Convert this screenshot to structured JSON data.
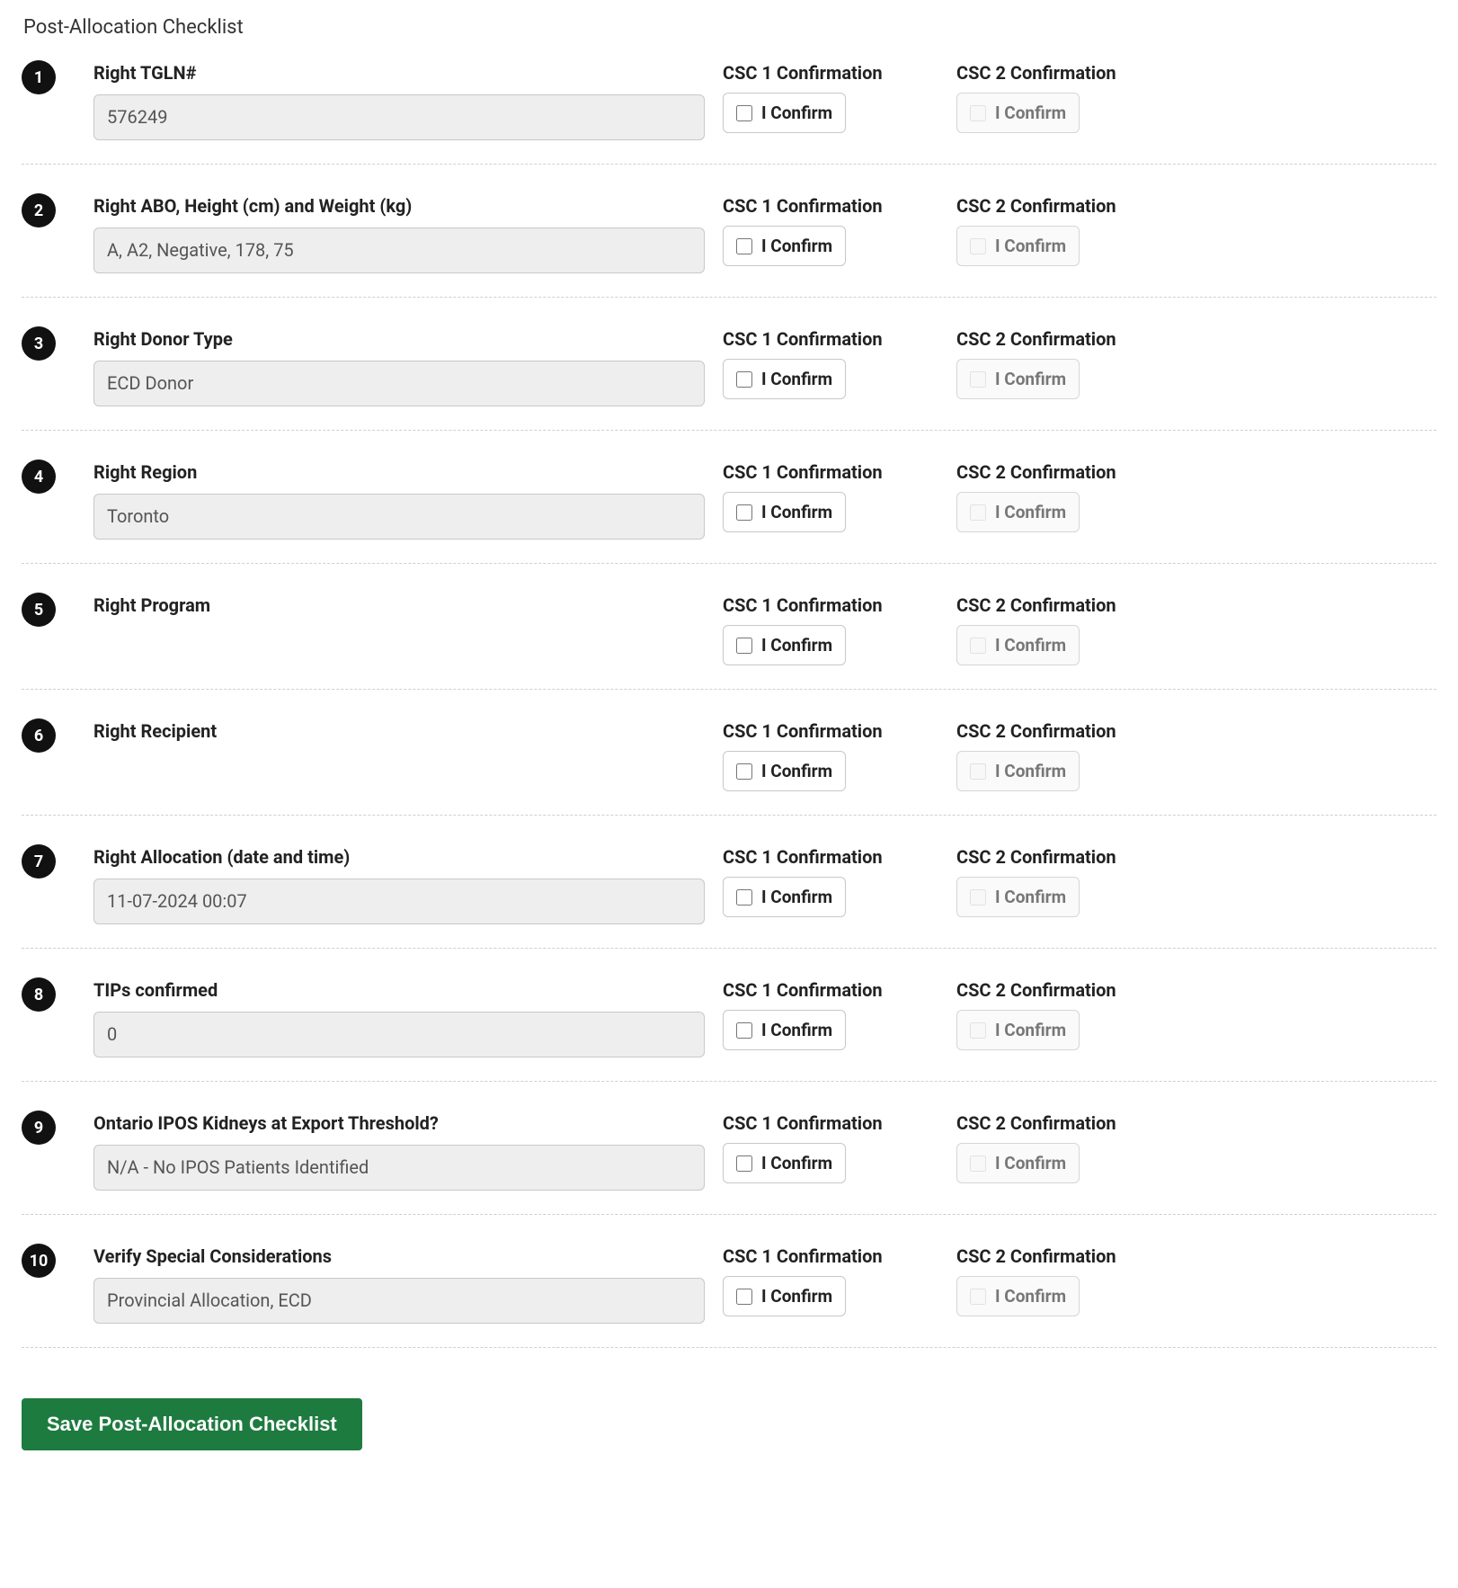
{
  "title": "Post-Allocation Checklist",
  "csc1_header": "CSC 1 Confirmation",
  "csc2_header": "CSC 2 Confirmation",
  "confirm_label": "I Confirm",
  "save_button": "Save Post-Allocation Checklist",
  "items": [
    {
      "num": "1",
      "label": "Right TGLN#",
      "value": "576249",
      "has_value": true
    },
    {
      "num": "2",
      "label": "Right ABO, Height (cm) and Weight (kg)",
      "value": "A, A2, Negative, 178, 75",
      "has_value": true
    },
    {
      "num": "3",
      "label": "Right Donor Type",
      "value": "ECD Donor",
      "has_value": true
    },
    {
      "num": "4",
      "label": "Right Region",
      "value": "Toronto",
      "has_value": true
    },
    {
      "num": "5",
      "label": "Right Program",
      "value": "",
      "has_value": false
    },
    {
      "num": "6",
      "label": "Right Recipient",
      "value": "",
      "has_value": false
    },
    {
      "num": "7",
      "label": "Right Allocation (date and time)",
      "value": "11-07-2024 00:07",
      "has_value": true
    },
    {
      "num": "8",
      "label": "TIPs confirmed",
      "value": "0",
      "has_value": true
    },
    {
      "num": "9",
      "label": "Ontario IPOS Kidneys at Export Threshold?",
      "value": "N/A - No IPOS Patients Identified",
      "has_value": true
    },
    {
      "num": "10",
      "label": "Verify Special Considerations",
      "value": "Provincial Allocation, ECD",
      "has_value": true
    }
  ],
  "colors": {
    "badge_bg": "#111111",
    "save_bg": "#1e7b3f",
    "field_bg": "#eeeeee",
    "border": "#c8c8c8",
    "dashed": "#cfcfcf"
  }
}
